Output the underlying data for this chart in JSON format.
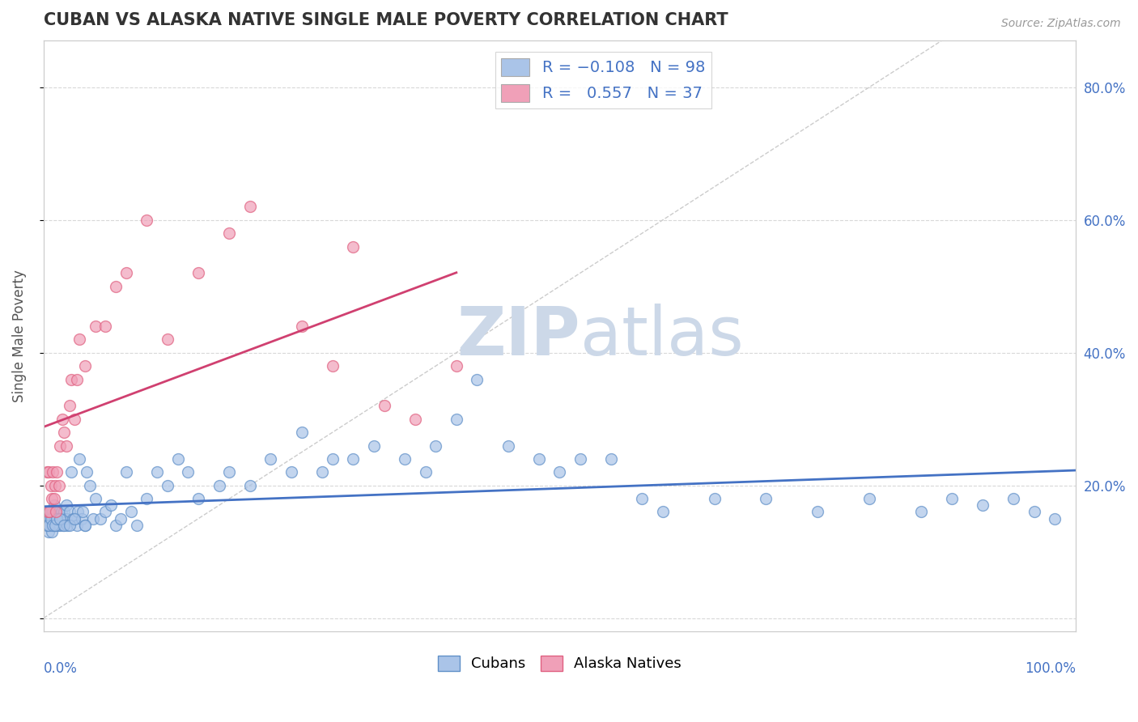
{
  "title": "CUBAN VS ALASKA NATIVE SINGLE MALE POVERTY CORRELATION CHART",
  "source": "Source: ZipAtlas.com",
  "ylabel": "Single Male Poverty",
  "xlim": [
    0.0,
    1.0
  ],
  "ylim": [
    -0.02,
    0.87
  ],
  "yticks": [
    0.0,
    0.2,
    0.4,
    0.6,
    0.8
  ],
  "right_ytick_labels": [
    "",
    "20.0%",
    "40.0%",
    "60.0%",
    "80.0%"
  ],
  "cuban_color": "#aac4e8",
  "alaska_color": "#f0a0b8",
  "cuban_edge_color": "#6090c8",
  "alaska_edge_color": "#e06080",
  "cuban_line_color": "#4472c4",
  "alaska_line_color": "#d04070",
  "diagonal_color": "#cccccc",
  "watermark_zip": "ZIP",
  "watermark_atlas": "atlas",
  "watermark_color": "#ccd8e8",
  "background_color": "#ffffff",
  "grid_color": "#d8d8d8",
  "title_color": "#333333",
  "label_color": "#4472c4",
  "source_color": "#999999",
  "cuban_x": [
    0.003,
    0.004,
    0.005,
    0.005,
    0.006,
    0.007,
    0.007,
    0.008,
    0.008,
    0.009,
    0.01,
    0.01,
    0.011,
    0.012,
    0.012,
    0.013,
    0.014,
    0.015,
    0.015,
    0.016,
    0.017,
    0.018,
    0.019,
    0.02,
    0.022,
    0.022,
    0.023,
    0.025,
    0.027,
    0.028,
    0.03,
    0.032,
    0.033,
    0.035,
    0.037,
    0.038,
    0.04,
    0.042,
    0.045,
    0.048,
    0.05,
    0.055,
    0.06,
    0.065,
    0.07,
    0.075,
    0.08,
    0.085,
    0.09,
    0.1,
    0.11,
    0.12,
    0.13,
    0.14,
    0.15,
    0.17,
    0.18,
    0.2,
    0.22,
    0.24,
    0.25,
    0.27,
    0.28,
    0.3,
    0.32,
    0.35,
    0.37,
    0.38,
    0.4,
    0.42,
    0.45,
    0.48,
    0.5,
    0.52,
    0.55,
    0.58,
    0.6,
    0.65,
    0.7,
    0.75,
    0.8,
    0.85,
    0.88,
    0.91,
    0.94,
    0.96,
    0.98,
    0.003,
    0.005,
    0.007,
    0.009,
    0.011,
    0.013,
    0.016,
    0.02,
    0.025,
    0.03,
    0.04
  ],
  "cuban_y": [
    0.15,
    0.14,
    0.16,
    0.13,
    0.15,
    0.14,
    0.16,
    0.15,
    0.13,
    0.16,
    0.14,
    0.17,
    0.15,
    0.14,
    0.16,
    0.15,
    0.14,
    0.16,
    0.15,
    0.14,
    0.16,
    0.15,
    0.14,
    0.16,
    0.15,
    0.17,
    0.14,
    0.16,
    0.22,
    0.15,
    0.15,
    0.14,
    0.16,
    0.24,
    0.15,
    0.16,
    0.14,
    0.22,
    0.2,
    0.15,
    0.18,
    0.15,
    0.16,
    0.17,
    0.14,
    0.15,
    0.22,
    0.16,
    0.14,
    0.18,
    0.22,
    0.2,
    0.24,
    0.22,
    0.18,
    0.2,
    0.22,
    0.2,
    0.24,
    0.22,
    0.28,
    0.22,
    0.24,
    0.24,
    0.26,
    0.24,
    0.22,
    0.26,
    0.3,
    0.36,
    0.26,
    0.24,
    0.22,
    0.24,
    0.24,
    0.18,
    0.16,
    0.18,
    0.18,
    0.16,
    0.18,
    0.16,
    0.18,
    0.17,
    0.18,
    0.16,
    0.15,
    0.14,
    0.14,
    0.15,
    0.14,
    0.14,
    0.15,
    0.15,
    0.14,
    0.14,
    0.15,
    0.14
  ],
  "alaska_x": [
    0.003,
    0.004,
    0.005,
    0.006,
    0.007,
    0.008,
    0.009,
    0.01,
    0.011,
    0.012,
    0.013,
    0.015,
    0.016,
    0.018,
    0.02,
    0.022,
    0.025,
    0.027,
    0.03,
    0.032,
    0.035,
    0.04,
    0.05,
    0.06,
    0.07,
    0.08,
    0.1,
    0.12,
    0.15,
    0.18,
    0.2,
    0.25,
    0.28,
    0.3,
    0.33,
    0.36,
    0.4
  ],
  "alaska_y": [
    0.22,
    0.16,
    0.22,
    0.16,
    0.2,
    0.18,
    0.22,
    0.18,
    0.2,
    0.16,
    0.22,
    0.2,
    0.26,
    0.3,
    0.28,
    0.26,
    0.32,
    0.36,
    0.3,
    0.36,
    0.42,
    0.38,
    0.44,
    0.44,
    0.5,
    0.52,
    0.6,
    0.42,
    0.52,
    0.58,
    0.62,
    0.44,
    0.38,
    0.56,
    0.32,
    0.3,
    0.38
  ]
}
